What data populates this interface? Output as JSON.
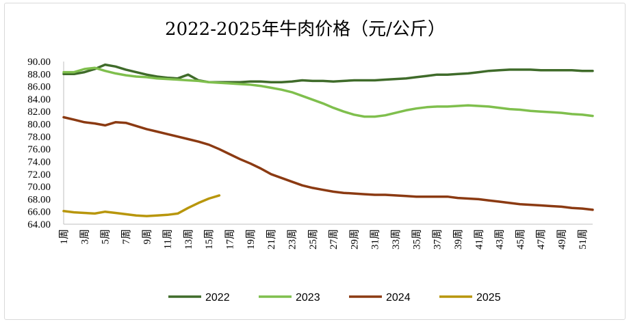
{
  "chart_data": {
    "type": "line",
    "title": "2022-2025年牛肉价格（元/公斤）",
    "xlabel": "",
    "ylabel": "",
    "ylim": [
      64,
      90
    ],
    "yticks": [
      "64.00",
      "66.00",
      "68.00",
      "70.00",
      "72.00",
      "74.00",
      "76.00",
      "78.00",
      "80.00",
      "82.00",
      "84.00",
      "86.00",
      "88.00",
      "90.00"
    ],
    "x_labels": [
      "1周",
      "3周",
      "5周",
      "7周",
      "9周",
      "11周",
      "13周",
      "15周",
      "17周",
      "19周",
      "21周",
      "23周",
      "25周",
      "27周",
      "29周",
      "31周",
      "33周",
      "35周",
      "37周",
      "39周",
      "41周",
      "43周",
      "45周",
      "47周",
      "49周",
      "51周"
    ],
    "x_label_weeks": [
      1,
      3,
      5,
      7,
      9,
      11,
      13,
      15,
      17,
      19,
      21,
      23,
      25,
      27,
      29,
      31,
      33,
      35,
      37,
      39,
      41,
      43,
      45,
      47,
      49,
      51
    ],
    "x_range": [
      1,
      52
    ],
    "grid": false,
    "legend_position": "bottom",
    "series": [
      {
        "name": "2022",
        "color": "#3f6b2a",
        "values": [
          88.0,
          88.0,
          88.3,
          88.8,
          89.5,
          89.2,
          88.7,
          88.3,
          87.9,
          87.6,
          87.4,
          87.3,
          87.9,
          87.0,
          86.7,
          86.7,
          86.7,
          86.7,
          86.8,
          86.8,
          86.7,
          86.7,
          86.8,
          87.0,
          86.9,
          86.9,
          86.8,
          86.9,
          87.0,
          87.0,
          87.0,
          87.1,
          87.2,
          87.3,
          87.5,
          87.7,
          87.9,
          87.9,
          88.0,
          88.1,
          88.3,
          88.5,
          88.6,
          88.7,
          88.7,
          88.7,
          88.6,
          88.6,
          88.6,
          88.6,
          88.5,
          88.5
        ]
      },
      {
        "name": "2023",
        "color": "#7fbf4d",
        "values": [
          88.3,
          88.3,
          88.8,
          89.0,
          88.5,
          88.1,
          87.8,
          87.6,
          87.5,
          87.3,
          87.2,
          87.1,
          87.0,
          86.9,
          86.7,
          86.6,
          86.5,
          86.4,
          86.3,
          86.1,
          85.8,
          85.5,
          85.1,
          84.5,
          83.9,
          83.3,
          82.6,
          82.0,
          81.5,
          81.2,
          81.2,
          81.4,
          81.8,
          82.2,
          82.5,
          82.7,
          82.8,
          82.8,
          82.9,
          83.0,
          82.9,
          82.8,
          82.6,
          82.4,
          82.3,
          82.1,
          82.0,
          81.9,
          81.8,
          81.6,
          81.5,
          81.3
        ]
      },
      {
        "name": "2024",
        "color": "#8b3a12",
        "values": [
          81.1,
          80.7,
          80.3,
          80.1,
          79.8,
          80.3,
          80.2,
          79.7,
          79.2,
          78.8,
          78.4,
          78.0,
          77.6,
          77.2,
          76.7,
          76.0,
          75.2,
          74.4,
          73.7,
          72.9,
          72.0,
          71.4,
          70.8,
          70.2,
          69.8,
          69.5,
          69.2,
          69.0,
          68.9,
          68.8,
          68.7,
          68.7,
          68.6,
          68.5,
          68.4,
          68.4,
          68.4,
          68.4,
          68.2,
          68.1,
          68.0,
          67.8,
          67.6,
          67.4,
          67.2,
          67.1,
          67.0,
          66.9,
          66.8,
          66.6,
          66.5,
          66.3
        ]
      },
      {
        "name": "2025",
        "color": "#b8960c",
        "values": [
          66.1,
          65.9,
          65.8,
          65.7,
          66.0,
          65.8,
          65.6,
          65.4,
          65.3,
          65.4,
          65.5,
          65.7,
          66.6,
          67.4,
          68.1,
          68.6
        ]
      }
    ]
  }
}
